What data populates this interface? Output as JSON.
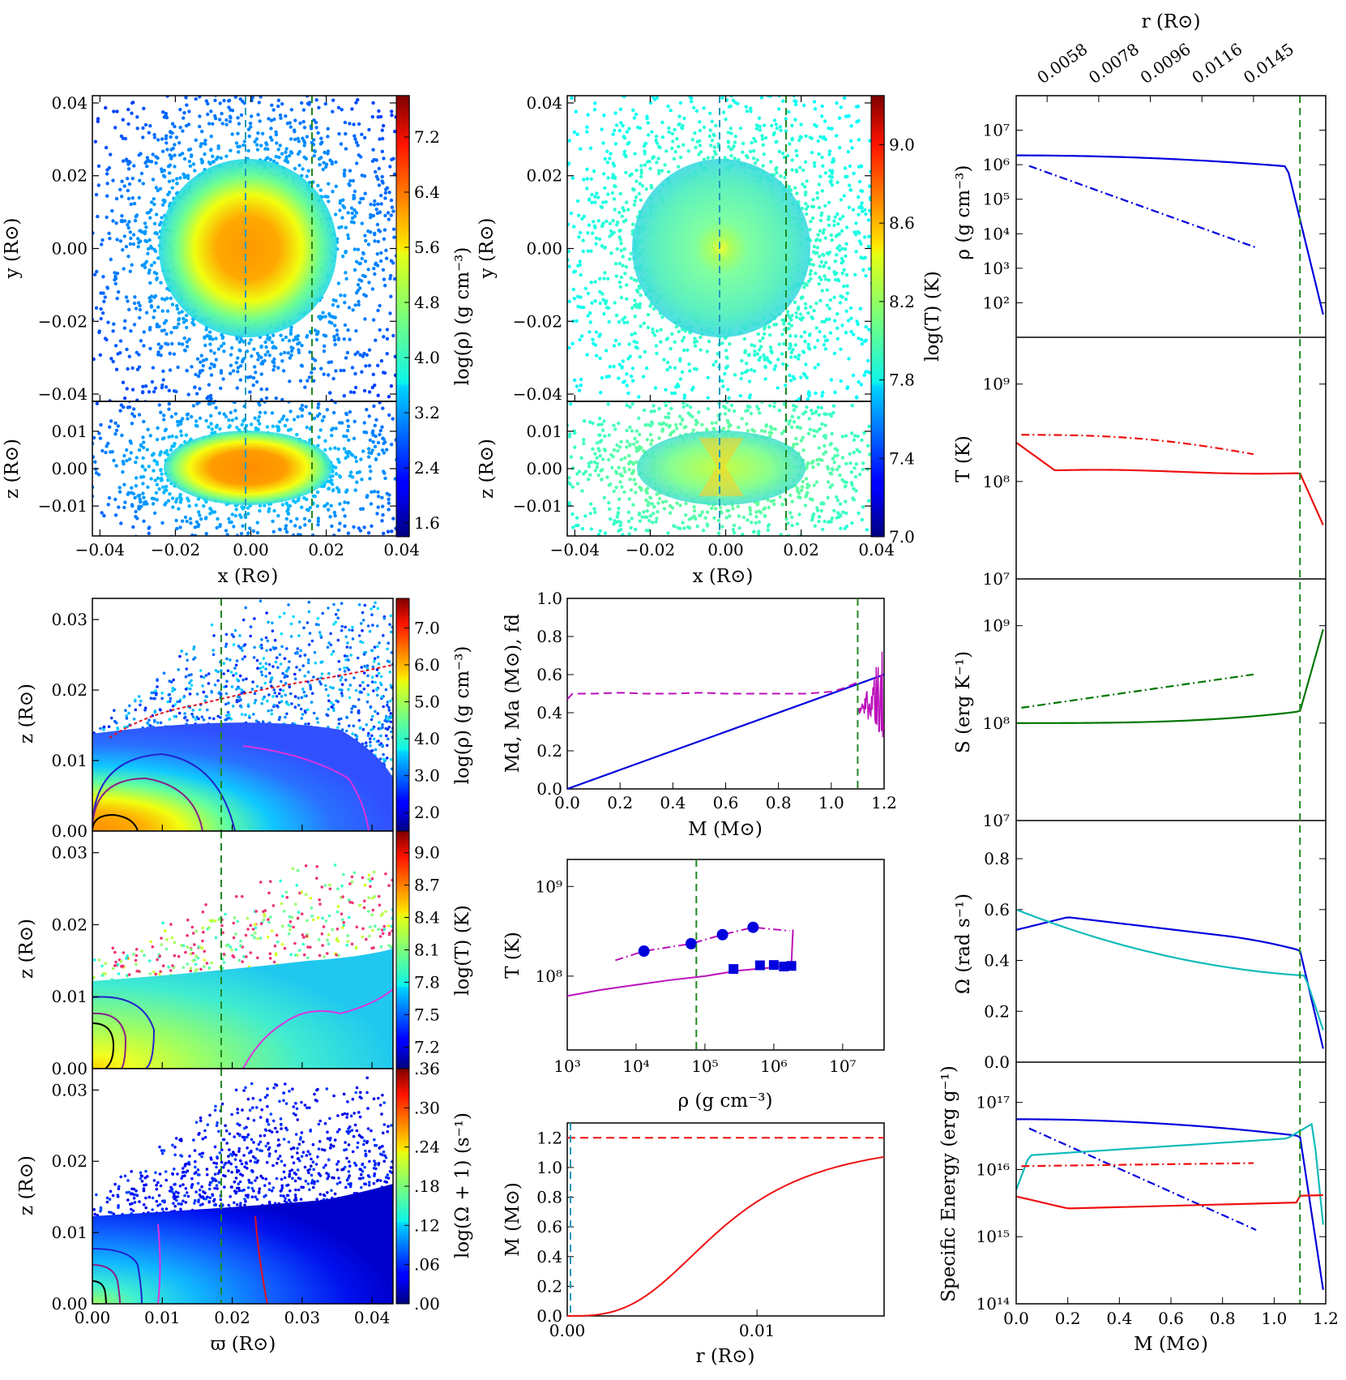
{
  "colors": {
    "blue": "#0000dd",
    "red": "#ee1111",
    "green": "#007700",
    "cyan": "#11bbbb",
    "magenta": "#bb11bb",
    "dashgreen": "#228822",
    "dashcyan": "#2299bb"
  },
  "top_axis": {
    "label": "r (R⊙)",
    "ticks": [
      {
        "m": 0.12,
        "label": "0.0058"
      },
      {
        "m": 0.32,
        "label": "0.0078"
      },
      {
        "m": 0.52,
        "label": "0.0096"
      },
      {
        "m": 0.72,
        "label": "0.0116"
      },
      {
        "m": 0.92,
        "label": "0.0145"
      }
    ]
  },
  "chart_data": [
    {
      "id": "density_xy",
      "type": "scatter",
      "xlabel": "",
      "ylabel": "y (R⊙)",
      "xlim": [
        -0.042,
        0.042
      ],
      "ylim": [
        -0.042,
        0.042
      ],
      "yticks": [
        {
          "v": 0.04,
          "label": "0.04"
        },
        {
          "v": 0.02,
          "label": "0.02"
        },
        {
          "v": 0.0,
          "label": "0.00"
        },
        {
          "v": -0.02,
          "label": "−0.02"
        },
        {
          "v": -0.04,
          "label": "−0.04"
        }
      ],
      "vlines": [
        {
          "x": 0.0,
          "color": "dashcyan"
        },
        {
          "x": 0.018,
          "color": "dashgreen"
        }
      ]
    },
    {
      "id": "density_xz",
      "type": "scatter",
      "xlabel": "x (R⊙)",
      "ylabel": "z (R⊙)",
      "xlim": [
        -0.042,
        0.042
      ],
      "ylim": [
        -0.018,
        0.018
      ],
      "xticks": [
        {
          "v": -0.04,
          "label": "−0.04"
        },
        {
          "v": -0.02,
          "label": "−0.02"
        },
        {
          "v": 0.0,
          "label": "0.00"
        },
        {
          "v": 0.02,
          "label": "0.02"
        },
        {
          "v": 0.04,
          "label": "0.04"
        }
      ],
      "yticks": [
        {
          "v": 0.01,
          "label": "0.01"
        },
        {
          "v": 0.0,
          "label": "0.00"
        },
        {
          "v": -0.01,
          "label": "−0.01"
        }
      ]
    },
    {
      "id": "density_colorbar",
      "type": "colorbar",
      "label": "log(ρ) (g cm⁻³)",
      "range": [
        1.4,
        7.8
      ],
      "ticks": [
        "1.6",
        "2.4",
        "3.2",
        "4.0",
        "4.8",
        "5.6",
        "6.4",
        "7.2"
      ]
    },
    {
      "id": "temp_xy",
      "type": "scatter",
      "xlabel": "",
      "ylabel": "y (R⊙)",
      "xlim": [
        -0.042,
        0.042
      ],
      "ylim": [
        -0.042,
        0.042
      ],
      "yticks": [
        {
          "v": 0.04,
          "label": "0.04"
        },
        {
          "v": 0.02,
          "label": "0.02"
        },
        {
          "v": 0.0,
          "label": "0.00"
        },
        {
          "v": -0.02,
          "label": "−0.02"
        },
        {
          "v": -0.04,
          "label": "−0.04"
        }
      ]
    },
    {
      "id": "temp_xz",
      "type": "scatter",
      "xlabel": "x (R⊙)",
      "ylabel": "z (R⊙)",
      "xlim": [
        -0.042,
        0.042
      ],
      "ylim": [
        -0.018,
        0.018
      ],
      "xticks": [
        {
          "v": -0.04,
          "label": "−0.04"
        },
        {
          "v": -0.02,
          "label": "−0.02"
        },
        {
          "v": 0.0,
          "label": "0.00"
        },
        {
          "v": 0.02,
          "label": "0.02"
        },
        {
          "v": 0.04,
          "label": "0.04"
        }
      ],
      "yticks": [
        {
          "v": 0.01,
          "label": "0.01"
        },
        {
          "v": 0.0,
          "label": "0.00"
        },
        {
          "v": -0.01,
          "label": "−0.01"
        }
      ]
    },
    {
      "id": "temp_colorbar",
      "type": "colorbar",
      "label": "log(T) (K)",
      "range": [
        7.0,
        9.25
      ],
      "ticks": [
        "7.0",
        "7.4",
        "7.8",
        "8.2",
        "8.6",
        "9.0"
      ]
    },
    {
      "id": "rz_density",
      "type": "scatter",
      "ylabel": "z (R⊙)",
      "xlim": [
        0,
        0.043
      ],
      "ylim": [
        0,
        0.033
      ],
      "yticks": [
        "0.00",
        "0.01",
        "0.02",
        "0.03"
      ]
    },
    {
      "id": "rz_density_colorbar",
      "type": "colorbar",
      "label": "log(ρ) (g cm⁻³)",
      "range": [
        1.5,
        7.8
      ],
      "ticks": [
        "2.0",
        "3.0",
        "4.0",
        "5.0",
        "6.0",
        "7.0"
      ]
    },
    {
      "id": "rz_temp",
      "type": "scatter",
      "ylabel": "z (R⊙)",
      "xlim": [
        0,
        0.043
      ],
      "ylim": [
        0,
        0.033
      ],
      "yticks": [
        "0.00",
        "0.01",
        "0.02",
        "0.03"
      ]
    },
    {
      "id": "rz_temp_colorbar",
      "type": "colorbar",
      "label": "log(T) (K)",
      "range": [
        7.0,
        9.2
      ],
      "ticks": [
        "7.2",
        "7.5",
        "7.8",
        "8.1",
        "8.4",
        "8.7",
        "9.0"
      ]
    },
    {
      "id": "rz_omega",
      "type": "scatter",
      "xlabel": "ϖ (R⊙)",
      "ylabel": "z (R⊙)",
      "xlim": [
        0,
        0.043
      ],
      "ylim": [
        0,
        0.033
      ],
      "xticks": [
        "0.00",
        "0.01",
        "0.02",
        "0.03",
        "0.04"
      ],
      "yticks": [
        "0.00",
        "0.01",
        "0.02",
        "0.03"
      ]
    },
    {
      "id": "rz_omega_colorbar",
      "type": "colorbar",
      "label": "log(Ω + 1) (s⁻¹)",
      "range": [
        0,
        0.36
      ],
      "ticks": [
        ".00",
        ".06",
        ".12",
        ".18",
        ".24",
        ".30",
        ".36"
      ]
    },
    {
      "id": "mass_fraction",
      "type": "line",
      "xlabel": "M (M⊙)",
      "ylabel": "Md, Ma (M⊙), fd",
      "xlim": [
        0,
        1.2
      ],
      "ylim": [
        0,
        1.0
      ],
      "xticks": [
        "0.0",
        "0.2",
        "0.4",
        "0.6",
        "0.8",
        "1.0",
        "1.2"
      ],
      "yticks": [
        "0.0",
        "0.2",
        "0.4",
        "0.6",
        "0.8",
        "1.0"
      ],
      "series": [
        {
          "name": "Md",
          "x": [
            0,
            1.2
          ],
          "y": [
            0,
            0.6
          ]
        },
        {
          "name": "fd",
          "x": [
            0.0,
            0.02,
            0.1,
            0.2,
            0.3,
            0.4,
            0.5,
            0.6,
            0.7,
            0.8,
            0.9,
            1.0,
            1.05,
            1.1
          ],
          "y": [
            0.47,
            0.5,
            0.5,
            0.505,
            0.5,
            0.5,
            0.505,
            0.5,
            0.5,
            0.5,
            0.5,
            0.51,
            0.53,
            0.56
          ]
        }
      ]
    },
    {
      "id": "rho_T",
      "type": "line",
      "xlabel": "ρ (g cm⁻³)",
      "ylabel": "T (K)",
      "xlim": [
        1000.0,
        40000000.0
      ],
      "ylim": [
        15000000.0,
        2000000000.0
      ],
      "xticks": [
        "10³",
        "10⁴",
        "10⁵",
        "10⁶",
        "10⁷"
      ],
      "yticks": [
        "10⁸",
        "10⁹"
      ],
      "series": [
        {
          "name": "solid",
          "x": [
            1000.0,
            3000.0,
            10000.0,
            30000.0,
            100000.0,
            300000.0,
            1000000.0,
            1800000.0
          ],
          "y": [
            60000000.0,
            70000000.0,
            80000000.0,
            90000000.0,
            100000000.0,
            115000000.0,
            125000000.0,
            135000000.0
          ]
        },
        {
          "name": "dashdot",
          "x": [
            5000.0,
            13000.0,
            63000.0,
            180000.0,
            500000.0,
            1700000.0
          ],
          "y": [
            150000000.0,
            190000000.0,
            230000000.0,
            290000000.0,
            350000000.0,
            320000000.0
          ]
        },
        {
          "name": "circles",
          "x": [
            13000.0,
            63000.0,
            180000.0,
            500000.0
          ],
          "y": [
            190000000.0,
            230000000.0,
            290000000.0,
            350000000.0
          ]
        },
        {
          "name": "squares",
          "x": [
            260000.0,
            630000.0,
            1000000.0,
            1400000.0,
            1800000.0
          ],
          "y": [
            120000000.0,
            132000000.0,
            133000000.0,
            128000000.0,
            130000000.0
          ]
        }
      ],
      "vline": 75000.0
    },
    {
      "id": "mass_radius",
      "type": "line",
      "xlabel": "r (R⊙)",
      "ylabel": "M (M⊙)",
      "xlim": [
        0,
        0.0167
      ],
      "ylim": [
        0,
        1.3
      ],
      "xticks": [
        "0.00",
        "0.01"
      ],
      "yticks": [
        "0.0",
        "0.2",
        "0.4",
        "0.6",
        "0.8",
        "1.0",
        "1.2"
      ],
      "hline": 1.2
    },
    {
      "id": "rho_profile",
      "type": "line",
      "ylabel": "ρ (g cm⁻³)",
      "xlim": [
        0,
        1.2
      ],
      "ylim": [
        10.0,
        100000000.0
      ],
      "yticks": [
        "10²",
        "10³",
        "10⁴",
        "10⁵",
        "10⁶",
        "10⁷"
      ]
    },
    {
      "id": "T_profile",
      "type": "line",
      "ylabel": "T (K)",
      "xlim": [
        0,
        1.2
      ],
      "ylim": [
        10000000.0,
        3000000000.0
      ],
      "yticks": [
        "10⁷",
        "10⁸",
        "10⁹"
      ]
    },
    {
      "id": "S_profile",
      "type": "line",
      "ylabel": "S (erg K⁻¹)",
      "xlim": [
        0,
        1.2
      ],
      "ylim": [
        10000000.0,
        3000000000.0
      ],
      "yticks": [
        "10⁷",
        "10⁸",
        "10⁹"
      ]
    },
    {
      "id": "Omega_profile",
      "type": "line",
      "ylabel": "Ω (rad s⁻¹)",
      "xlim": [
        0,
        1.2
      ],
      "ylim": [
        0,
        0.95
      ],
      "yticks": [
        "0.0",
        "0.2",
        "0.4",
        "0.6",
        "0.8"
      ]
    },
    {
      "id": "energy_profile",
      "type": "line",
      "xlabel": "M (M⊙)",
      "ylabel": "Specific Energy (erg g⁻¹)",
      "xlim": [
        0,
        1.2
      ],
      "ylim": [
        100000000000000.0,
        4e+17
      ],
      "xticks": [
        "0.0",
        "0.2",
        "0.4",
        "0.6",
        "0.8",
        "1.0",
        "1.2"
      ],
      "yticks": [
        "10¹⁴",
        "10¹⁵",
        "10¹⁶",
        "10¹⁷"
      ]
    }
  ]
}
